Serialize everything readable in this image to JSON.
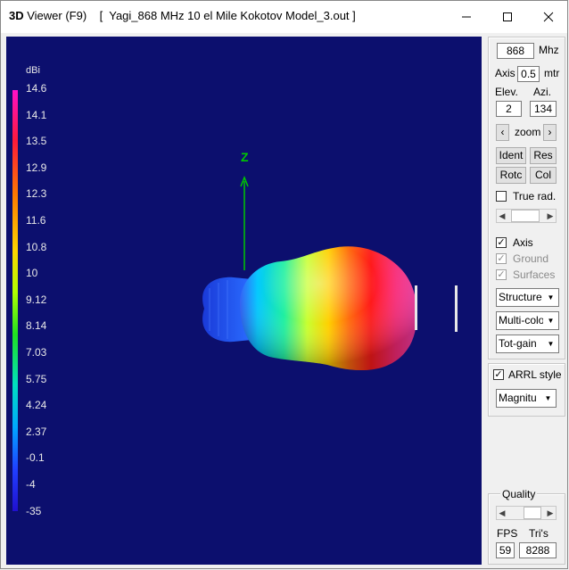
{
  "titlebar": {
    "app_prefix": "3D",
    "app_name": " Viewer (F9)",
    "file": "[  Yagi_868 MHz 10 el Mile Kokotov Model_3.out ]"
  },
  "colorbar": {
    "unit": "dBi",
    "ticks": [
      "14.6",
      "14.1",
      "13.5",
      "12.9",
      "12.3",
      "11.6",
      "10.8",
      "10",
      "9.12",
      "8.14",
      "7.03",
      "5.75",
      "4.24",
      "2.37",
      "-0.1",
      "-4",
      "-35"
    ],
    "gradient_colors": [
      "#ff10c8",
      "#ff1a3a",
      "#ff7a00",
      "#ffd400",
      "#b0ff00",
      "#20e020",
      "#00e0c0",
      "#00a8ff",
      "#2040ff",
      "#2010d0"
    ]
  },
  "axis": {
    "z_label": "Z",
    "color": "#00c800"
  },
  "panel": {
    "freq_value": "868",
    "freq_unit": "Mhz",
    "axis_label": "Axis",
    "axis_value": "0.5",
    "axis_unit": "mtr",
    "elev_label": "Elev.",
    "azi_label": "Azi.",
    "elev_value": "2",
    "azi_value": "134",
    "zoom_label": "zoom",
    "ident_label": "Ident",
    "res_label": "Res",
    "rotc_label": "Rotc",
    "col_label": "Col",
    "true_rad_label": "True rad.",
    "true_rad_checked": false,
    "axis_check_label": "Axis",
    "axis_checked": true,
    "ground_label": "Ground",
    "surfaces_label": "Surfaces",
    "structure_value": "Structure",
    "color_mode_value": "Multi-colo",
    "gain_value": "Tot-gain",
    "arrl_label": "ARRL style",
    "arrl_checked": true,
    "magnitude_value": "Magnitu",
    "quality_label": "Quality",
    "fps_label": "FPS",
    "tris_label": "Tri's",
    "fps_value": "59",
    "tris_value": "8288"
  }
}
